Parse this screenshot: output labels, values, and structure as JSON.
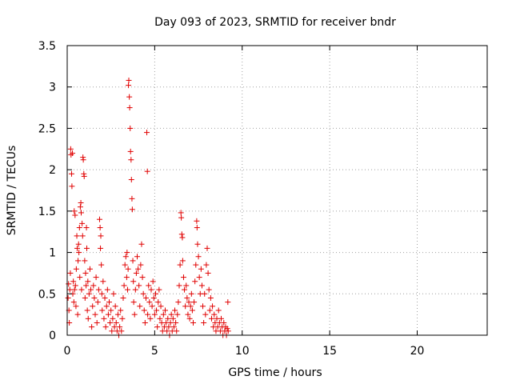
{
  "chart_data": {
    "type": "scatter",
    "title": "Day 093 of 2023, SRMTID for receiver bndr",
    "xlabel": "GPS time / hours",
    "ylabel": "SRMTID / TECUs",
    "xlim": [
      0,
      24
    ],
    "ylim": [
      0,
      3.5
    ],
    "xticks": [
      0,
      5,
      10,
      15,
      20
    ],
    "yticks": [
      0,
      0.5,
      1,
      1.5,
      2,
      2.5,
      3,
      3.5
    ],
    "xtick_labels": [
      "0",
      "5",
      "10",
      "15",
      "20"
    ],
    "ytick_labels": [
      "0",
      "0.5",
      "1",
      "1.5",
      "2",
      "2.5",
      "3",
      "3.5"
    ],
    "grid": true,
    "marker": "+",
    "color": "#e00000",
    "series": [
      {
        "name": "bndr",
        "points": [
          [
            0.05,
            0.45
          ],
          [
            0.08,
            0.62
          ],
          [
            0.1,
            0.3
          ],
          [
            0.12,
            0.15
          ],
          [
            0.15,
            0.55
          ],
          [
            0.18,
            0.75
          ],
          [
            0.2,
            2.25
          ],
          [
            0.22,
            2.18
          ],
          [
            0.25,
            1.95
          ],
          [
            0.27,
            1.8
          ],
          [
            0.3,
            2.2
          ],
          [
            0.32,
            0.5
          ],
          [
            0.35,
            0.65
          ],
          [
            0.38,
            0.4
          ],
          [
            0.4,
            1.5
          ],
          [
            0.42,
            0.55
          ],
          [
            0.45,
            1.45
          ],
          [
            0.47,
            0.6
          ],
          [
            0.5,
            0.35
          ],
          [
            0.52,
            0.8
          ],
          [
            0.55,
            1.2
          ],
          [
            0.57,
            1.05
          ],
          [
            0.6,
            0.25
          ],
          [
            0.62,
            0.9
          ],
          [
            0.65,
            1.1
          ],
          [
            0.67,
            1.0
          ],
          [
            0.7,
            1.3
          ],
          [
            0.72,
            0.7
          ],
          [
            0.75,
            1.55
          ],
          [
            0.78,
            1.6
          ],
          [
            0.8,
            1.48
          ],
          [
            0.82,
            0.55
          ],
          [
            0.85,
            1.35
          ],
          [
            0.88,
            1.2
          ],
          [
            0.9,
            2.15
          ],
          [
            0.92,
            2.12
          ],
          [
            0.95,
            1.95
          ],
          [
            0.97,
            1.92
          ],
          [
            1.0,
            0.9
          ],
          [
            1.02,
            0.45
          ],
          [
            1.05,
            0.75
          ],
          [
            1.08,
            0.6
          ],
          [
            1.1,
            1.3
          ],
          [
            1.12,
            1.05
          ],
          [
            1.15,
            0.3
          ],
          [
            1.18,
            0.65
          ],
          [
            1.2,
            0.2
          ],
          [
            1.25,
            0.5
          ],
          [
            1.3,
            0.8
          ],
          [
            1.35,
            0.55
          ],
          [
            1.4,
            0.1
          ],
          [
            1.45,
            0.35
          ],
          [
            1.5,
            0.6
          ],
          [
            1.55,
            0.45
          ],
          [
            1.6,
            0.25
          ],
          [
            1.65,
            0.7
          ],
          [
            1.7,
            0.15
          ],
          [
            1.75,
            0.4
          ],
          [
            1.8,
            0.55
          ],
          [
            1.85,
            1.4
          ],
          [
            1.88,
            1.3
          ],
          [
            1.9,
            1.05
          ],
          [
            1.92,
            1.2
          ],
          [
            1.95,
            0.85
          ],
          [
            1.98,
            0.5
          ],
          [
            2.0,
            0.3
          ],
          [
            2.05,
            0.65
          ],
          [
            2.1,
            0.2
          ],
          [
            2.15,
            0.45
          ],
          [
            2.2,
            0.1
          ],
          [
            2.25,
            0.35
          ],
          [
            2.3,
            0.55
          ],
          [
            2.35,
            0.25
          ],
          [
            2.4,
            0.4
          ],
          [
            2.45,
            0.15
          ],
          [
            2.5,
            0.3
          ],
          [
            2.55,
            0.05
          ],
          [
            2.6,
            0.2
          ],
          [
            2.65,
            0.5
          ],
          [
            2.7,
            0.1
          ],
          [
            2.75,
            0.35
          ],
          [
            2.8,
            0.15
          ],
          [
            2.85,
            0.05
          ],
          [
            2.9,
            0.25
          ],
          [
            2.95,
            0.0
          ],
          [
            3.0,
            0.1
          ],
          [
            3.05,
            0.3
          ],
          [
            3.1,
            0.05
          ],
          [
            3.15,
            0.2
          ],
          [
            3.2,
            0.45
          ],
          [
            3.25,
            0.6
          ],
          [
            3.3,
            0.85
          ],
          [
            3.35,
            0.95
          ],
          [
            3.4,
            0.7
          ],
          [
            3.42,
            1.0
          ],
          [
            3.45,
            0.55
          ],
          [
            3.48,
            0.8
          ],
          [
            3.5,
            3.02
          ],
          [
            3.52,
            3.08
          ],
          [
            3.55,
            2.88
          ],
          [
            3.57,
            2.75
          ],
          [
            3.6,
            2.5
          ],
          [
            3.62,
            2.22
          ],
          [
            3.65,
            2.12
          ],
          [
            3.67,
            1.88
          ],
          [
            3.7,
            1.65
          ],
          [
            3.72,
            1.52
          ],
          [
            3.75,
            0.9
          ],
          [
            3.78,
            0.65
          ],
          [
            3.8,
            0.4
          ],
          [
            3.85,
            0.25
          ],
          [
            3.9,
            0.55
          ],
          [
            3.95,
            0.75
          ],
          [
            4.0,
            0.95
          ],
          [
            4.05,
            0.8
          ],
          [
            4.1,
            0.6
          ],
          [
            4.15,
            0.35
          ],
          [
            4.2,
            0.85
          ],
          [
            4.25,
            1.1
          ],
          [
            4.3,
            0.7
          ],
          [
            4.35,
            0.5
          ],
          [
            4.4,
            0.3
          ],
          [
            4.45,
            0.15
          ],
          [
            4.5,
            0.45
          ],
          [
            4.55,
            2.45
          ],
          [
            4.58,
            1.98
          ],
          [
            4.6,
            0.25
          ],
          [
            4.65,
            0.6
          ],
          [
            4.7,
            0.4
          ],
          [
            4.75,
            0.2
          ],
          [
            4.8,
            0.55
          ],
          [
            4.85,
            0.35
          ],
          [
            4.9,
            0.65
          ],
          [
            4.95,
            0.45
          ],
          [
            5.0,
            0.25
          ],
          [
            5.05,
            0.5
          ],
          [
            5.1,
            0.3
          ],
          [
            5.15,
            0.1
          ],
          [
            5.2,
            0.4
          ],
          [
            5.25,
            0.55
          ],
          [
            5.3,
            0.2
          ],
          [
            5.35,
            0.35
          ],
          [
            5.4,
            0.15
          ],
          [
            5.45,
            0.05
          ],
          [
            5.5,
            0.25
          ],
          [
            5.55,
            0.1
          ],
          [
            5.6,
            0.3
          ],
          [
            5.65,
            0.15
          ],
          [
            5.7,
            0.05
          ],
          [
            5.75,
            0.2
          ],
          [
            5.8,
            0.1
          ],
          [
            5.85,
            0.0
          ],
          [
            5.9,
            0.15
          ],
          [
            5.95,
            0.25
          ],
          [
            6.0,
            0.05
          ],
          [
            6.05,
            0.2
          ],
          [
            6.1,
            0.1
          ],
          [
            6.15,
            0.3
          ],
          [
            6.2,
            0.15
          ],
          [
            6.25,
            0.05
          ],
          [
            6.3,
            0.25
          ],
          [
            6.35,
            0.4
          ],
          [
            6.4,
            0.6
          ],
          [
            6.45,
            0.85
          ],
          [
            6.5,
            1.48
          ],
          [
            6.52,
            1.42
          ],
          [
            6.55,
            1.22
          ],
          [
            6.58,
            1.18
          ],
          [
            6.6,
            0.9
          ],
          [
            6.65,
            0.7
          ],
          [
            6.7,
            0.55
          ],
          [
            6.75,
            0.35
          ],
          [
            6.8,
            0.6
          ],
          [
            6.85,
            0.45
          ],
          [
            6.9,
            0.25
          ],
          [
            6.95,
            0.4
          ],
          [
            7.0,
            0.2
          ],
          [
            7.05,
            0.35
          ],
          [
            7.1,
            0.5
          ],
          [
            7.15,
            0.3
          ],
          [
            7.2,
            0.15
          ],
          [
            7.25,
            0.4
          ],
          [
            7.3,
            0.65
          ],
          [
            7.35,
            0.85
          ],
          [
            7.4,
            1.38
          ],
          [
            7.42,
            1.3
          ],
          [
            7.45,
            1.1
          ],
          [
            7.5,
            0.95
          ],
          [
            7.55,
            0.7
          ],
          [
            7.6,
            0.5
          ],
          [
            7.65,
            0.8
          ],
          [
            7.7,
            0.6
          ],
          [
            7.75,
            0.35
          ],
          [
            7.8,
            0.15
          ],
          [
            7.85,
            0.5
          ],
          [
            7.9,
            0.25
          ],
          [
            7.95,
            0.85
          ],
          [
            8.0,
            1.05
          ],
          [
            8.05,
            0.75
          ],
          [
            8.1,
            0.55
          ],
          [
            8.15,
            0.3
          ],
          [
            8.2,
            0.45
          ],
          [
            8.25,
            0.2
          ],
          [
            8.3,
            0.35
          ],
          [
            8.35,
            0.1
          ],
          [
            8.4,
            0.25
          ],
          [
            8.45,
            0.15
          ],
          [
            8.5,
            0.05
          ],
          [
            8.55,
            0.2
          ],
          [
            8.6,
            0.1
          ],
          [
            8.65,
            0.3
          ],
          [
            8.7,
            0.15
          ],
          [
            8.75,
            0.05
          ],
          [
            8.8,
            0.2
          ],
          [
            8.85,
            0.1
          ],
          [
            8.9,
            0.0
          ],
          [
            8.95,
            0.15
          ],
          [
            9.0,
            0.05
          ],
          [
            9.05,
            0.1
          ],
          [
            9.1,
            0.0
          ],
          [
            9.15,
            0.08
          ],
          [
            9.18,
            0.4
          ],
          [
            9.2,
            0.05
          ]
        ]
      }
    ]
  }
}
